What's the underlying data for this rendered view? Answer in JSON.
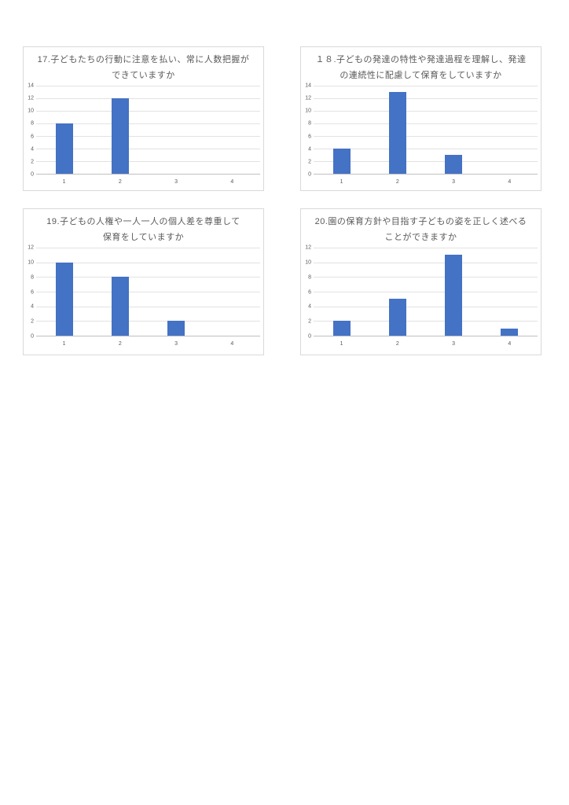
{
  "page": {
    "background": "#FFFFFF",
    "description_colors": {
      "bar": "#4472C4",
      "gridline": "#E2E2E2",
      "axis_line": "#BFBFBF",
      "text": "#595959",
      "chart_border": "#D9D9D9"
    }
  },
  "chart_data": [
    {
      "type": "bar",
      "title": "17.子どもたちの行動に注意を払い、常に人数把握ができていますか",
      "title_lines": [
        "17.子どもたちの行動に注意を払い、常に人数把握が",
        "できていますか"
      ],
      "categories": [
        "1",
        "2",
        "3",
        "4"
      ],
      "values": [
        8,
        12,
        0,
        0
      ],
      "xlabel": "",
      "ylabel": "",
      "ylim": [
        0,
        14
      ],
      "yticks": [
        0,
        2,
        4,
        6,
        8,
        10,
        12,
        14
      ],
      "grid": true,
      "legend": "none",
      "bar_color": "#4472C4"
    },
    {
      "type": "bar",
      "title": "１８.子どもの発達の特性や発達過程を理解し、発達の連続性に配慮して保育をしていますか",
      "title_lines": [
        "１８.子どもの発達の特性や発達過程を理解し、発達",
        "の連続性に配慮して保育をしていますか"
      ],
      "categories": [
        "1",
        "2",
        "3",
        "4"
      ],
      "values": [
        4,
        13,
        3,
        0
      ],
      "xlabel": "",
      "ylabel": "",
      "ylim": [
        0,
        14
      ],
      "yticks": [
        0,
        2,
        4,
        6,
        8,
        10,
        12,
        14
      ],
      "grid": true,
      "legend": "none",
      "bar_color": "#4472C4"
    },
    {
      "type": "bar",
      "title": "19.子どもの人権や一人一人の個人差を尊重して保育をしていますか",
      "title_lines": [
        "19.子どもの人権や一人一人の個人差を尊重して",
        "保育をしていますか"
      ],
      "categories": [
        "1",
        "2",
        "3",
        "4"
      ],
      "values": [
        10,
        8,
        2,
        0
      ],
      "xlabel": "",
      "ylabel": "",
      "ylim": [
        0,
        12
      ],
      "yticks": [
        0,
        2,
        4,
        6,
        8,
        10,
        12
      ],
      "grid": true,
      "legend": "none",
      "bar_color": "#4472C4"
    },
    {
      "type": "bar",
      "title": "20.園の保育方針や目指す子どもの姿を正しく述べることができますか",
      "title_lines": [
        "20.園の保育方針や目指す子どもの姿を正しく述べる",
        "ことができますか"
      ],
      "categories": [
        "1",
        "2",
        "3",
        "4"
      ],
      "values": [
        2,
        5,
        11,
        1
      ],
      "xlabel": "",
      "ylabel": "",
      "ylim": [
        0,
        12
      ],
      "yticks": [
        0,
        2,
        4,
        6,
        8,
        10,
        12
      ],
      "grid": true,
      "legend": "none",
      "bar_color": "#4472C4"
    }
  ]
}
